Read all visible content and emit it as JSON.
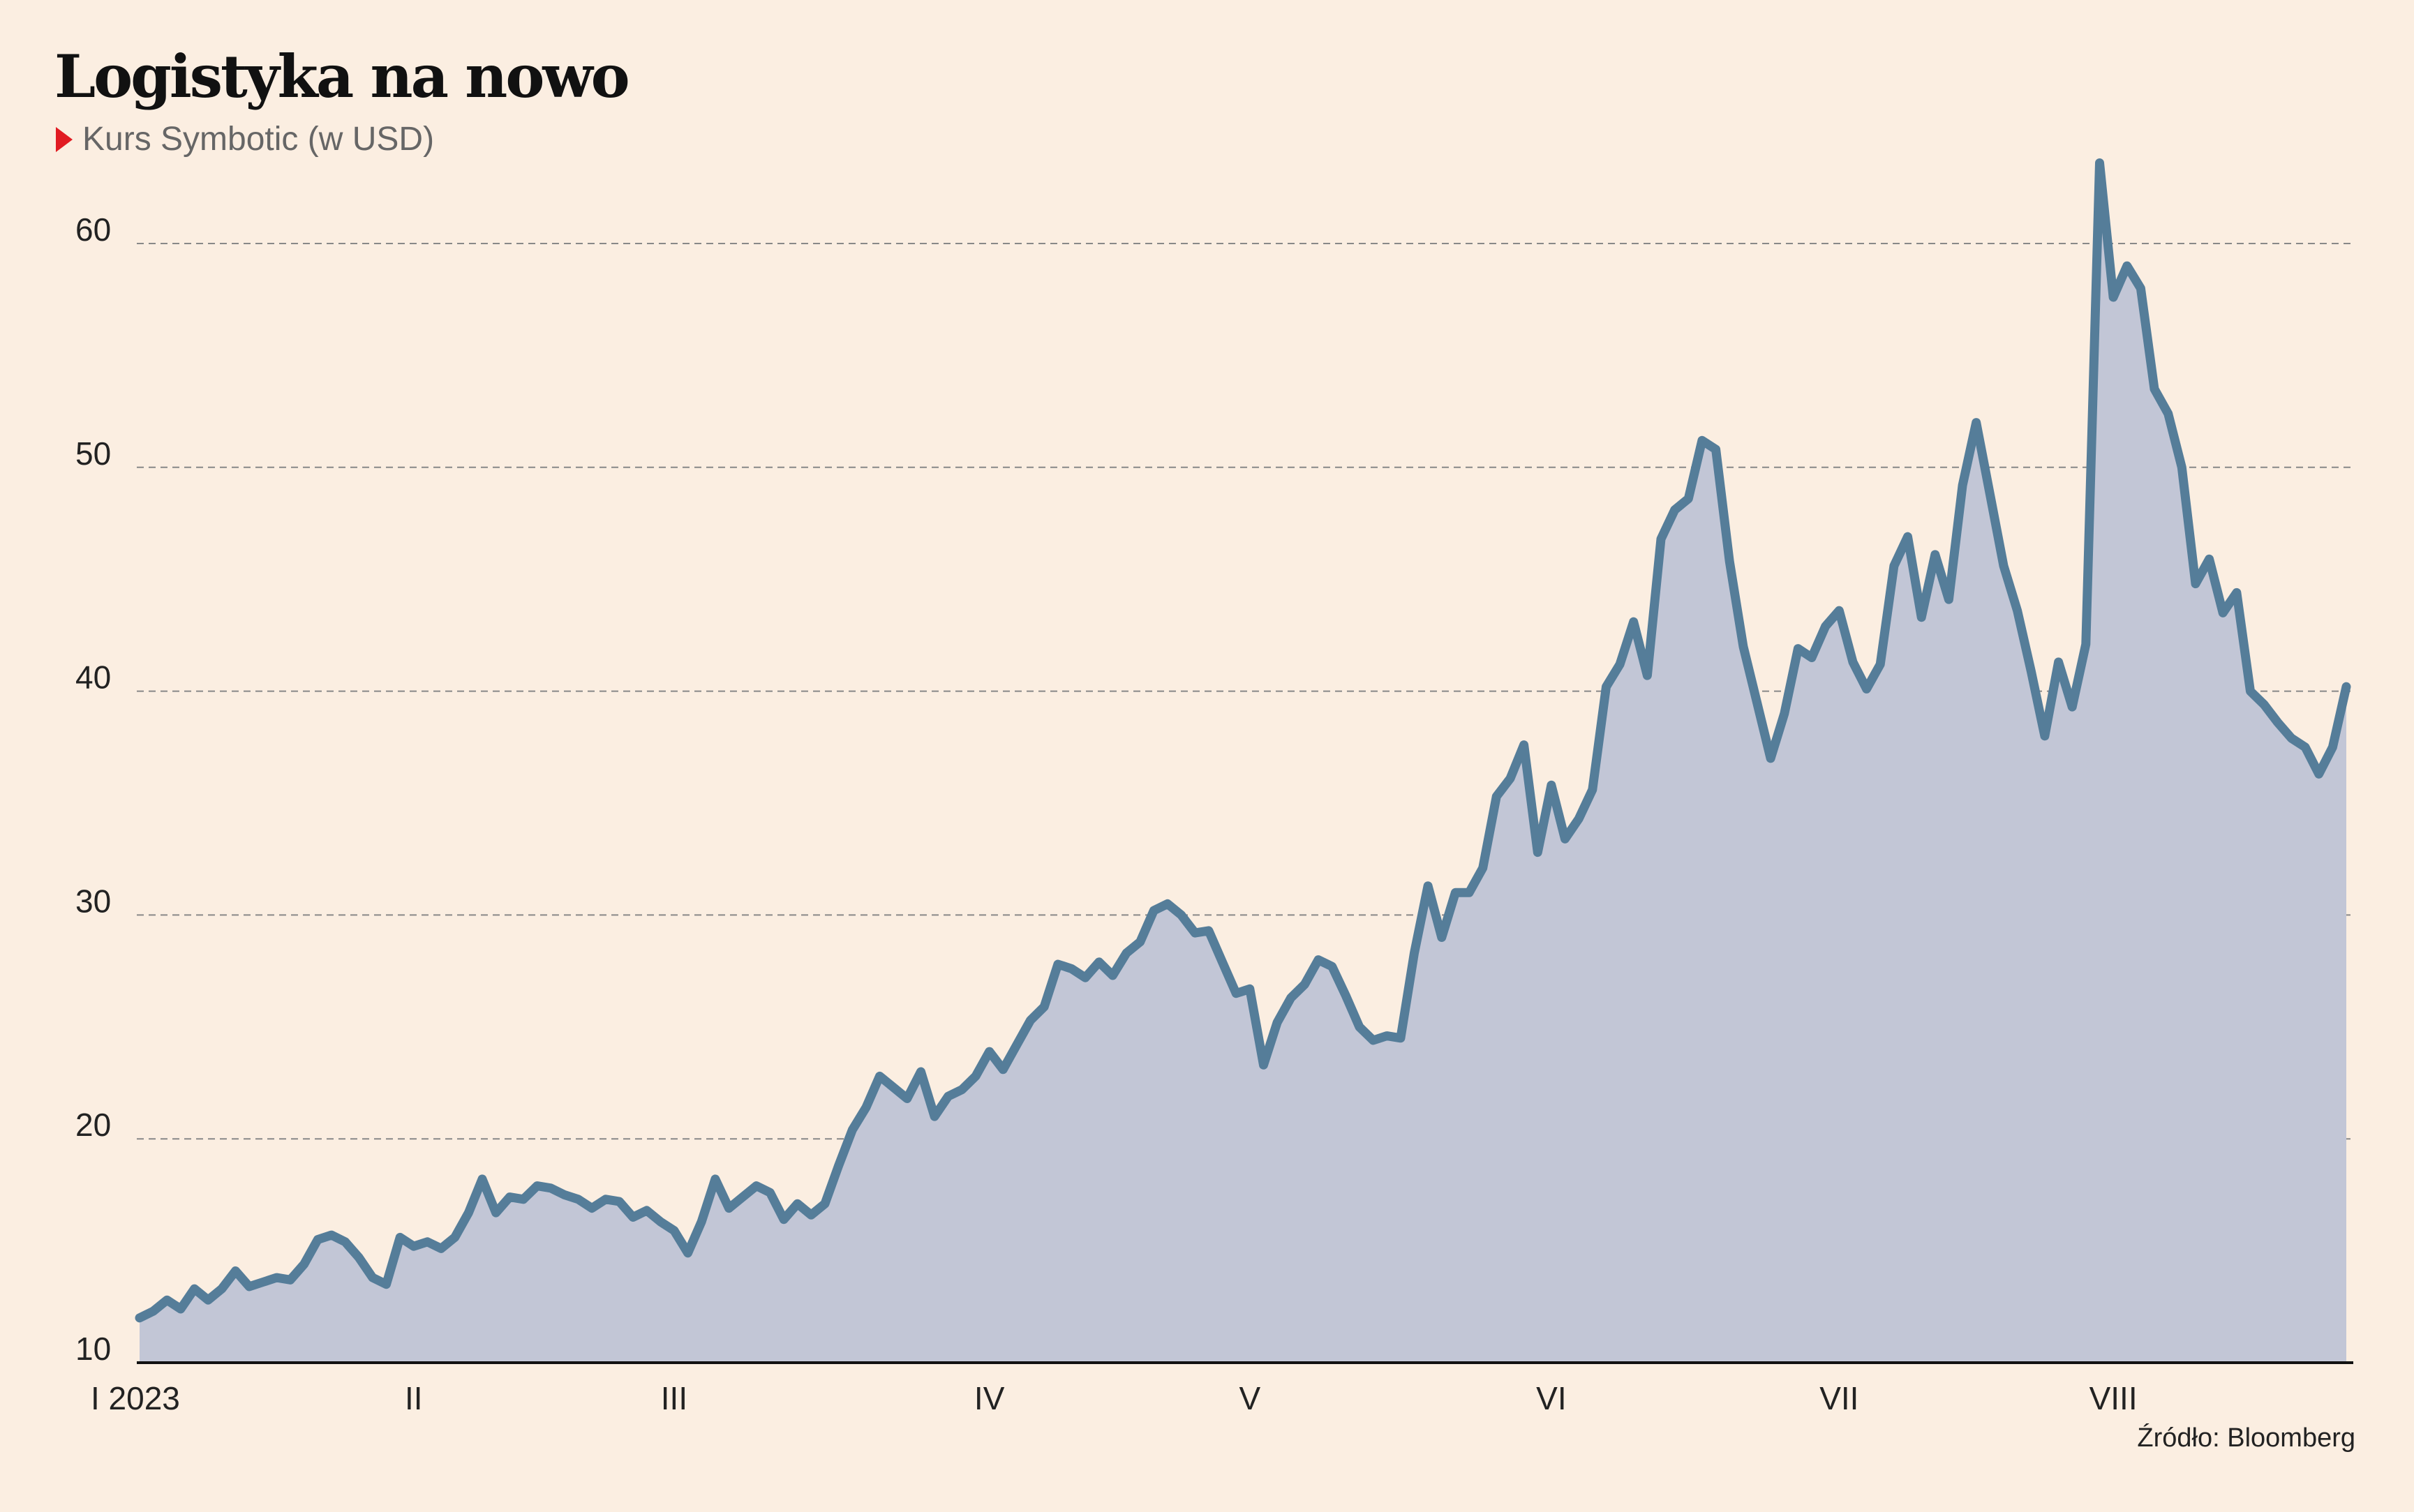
{
  "title": "Logistyka na nowo",
  "subtitle": "Kurs Symbotic (w USD)",
  "source": "Źródło: Bloomberg",
  "colors": {
    "background": "#fbeee1",
    "line": "#557d99",
    "area": "#c2c6d6",
    "marker": "#e11b22",
    "grid": "#888888",
    "axis": "#111111"
  },
  "chart_data": {
    "type": "area",
    "title": "Logistyka na nowo",
    "subtitle": "Kurs Symbotic (w USD)",
    "xlabel": "",
    "ylabel": "",
    "ylim": [
      10,
      60
    ],
    "yticks": [
      10,
      20,
      30,
      40,
      50,
      60
    ],
    "grid": true,
    "x_tick_labels": [
      "I 2023",
      "II",
      "III",
      "IV",
      "V",
      "VI",
      "VII",
      "VIII"
    ],
    "x_tick_index": [
      0,
      20,
      39,
      62,
      81,
      103,
      124,
      144
    ],
    "series": [
      {
        "name": "",
        "values": [
          12.0,
          12.3,
          12.8,
          12.4,
          13.3,
          12.8,
          13.3,
          14.1,
          13.4,
          13.6,
          13.8,
          13.7,
          14.4,
          15.5,
          15.7,
          15.4,
          14.7,
          13.8,
          13.5,
          15.6,
          15.2,
          15.4,
          15.1,
          15.6,
          16.7,
          18.2,
          16.7,
          17.4,
          17.3,
          17.9,
          17.8,
          17.5,
          17.3,
          16.9,
          17.3,
          17.2,
          16.5,
          16.8,
          16.3,
          15.9,
          14.9,
          16.3,
          18.2,
          16.9,
          17.4,
          17.9,
          17.6,
          16.4,
          17.1,
          16.6,
          17.1,
          18.8,
          20.4,
          21.4,
          22.8,
          22.3,
          21.8,
          23.0,
          21.0,
          21.9,
          22.2,
          22.8,
          23.9,
          23.1,
          24.2,
          25.3,
          25.9,
          27.8,
          27.6,
          27.2,
          27.9,
          27.3,
          28.3,
          28.8,
          30.2,
          30.5,
          30.0,
          29.2,
          29.3,
          27.9,
          26.5,
          26.7,
          23.3,
          25.2,
          26.3,
          26.9,
          28.0,
          27.7,
          26.4,
          25.0,
          24.4,
          24.6,
          24.5,
          28.3,
          31.3,
          29.0,
          31.0,
          31.0,
          32.1,
          35.3,
          36.1,
          37.6,
          32.8,
          35.8,
          33.4,
          34.3,
          35.6,
          40.2,
          41.2,
          43.1,
          40.7,
          46.8,
          48.1,
          48.6,
          51.2,
          50.8,
          45.8,
          42.0,
          39.5,
          37.0,
          39.0,
          41.9,
          41.5,
          42.9,
          43.6,
          41.3,
          40.1,
          41.2,
          45.6,
          46.9,
          43.3,
          46.1,
          44.1,
          49.2,
          52.0,
          48.8,
          45.6,
          43.6,
          40.9,
          38.0,
          41.3,
          39.3,
          42.1,
          63.6,
          57.6,
          59.0,
          58.0,
          53.5,
          52.4,
          50.0,
          44.8,
          45.9,
          43.5,
          44.4,
          40.0,
          39.4,
          38.6,
          37.9,
          37.5,
          36.3,
          37.5,
          40.2
        ]
      }
    ]
  }
}
